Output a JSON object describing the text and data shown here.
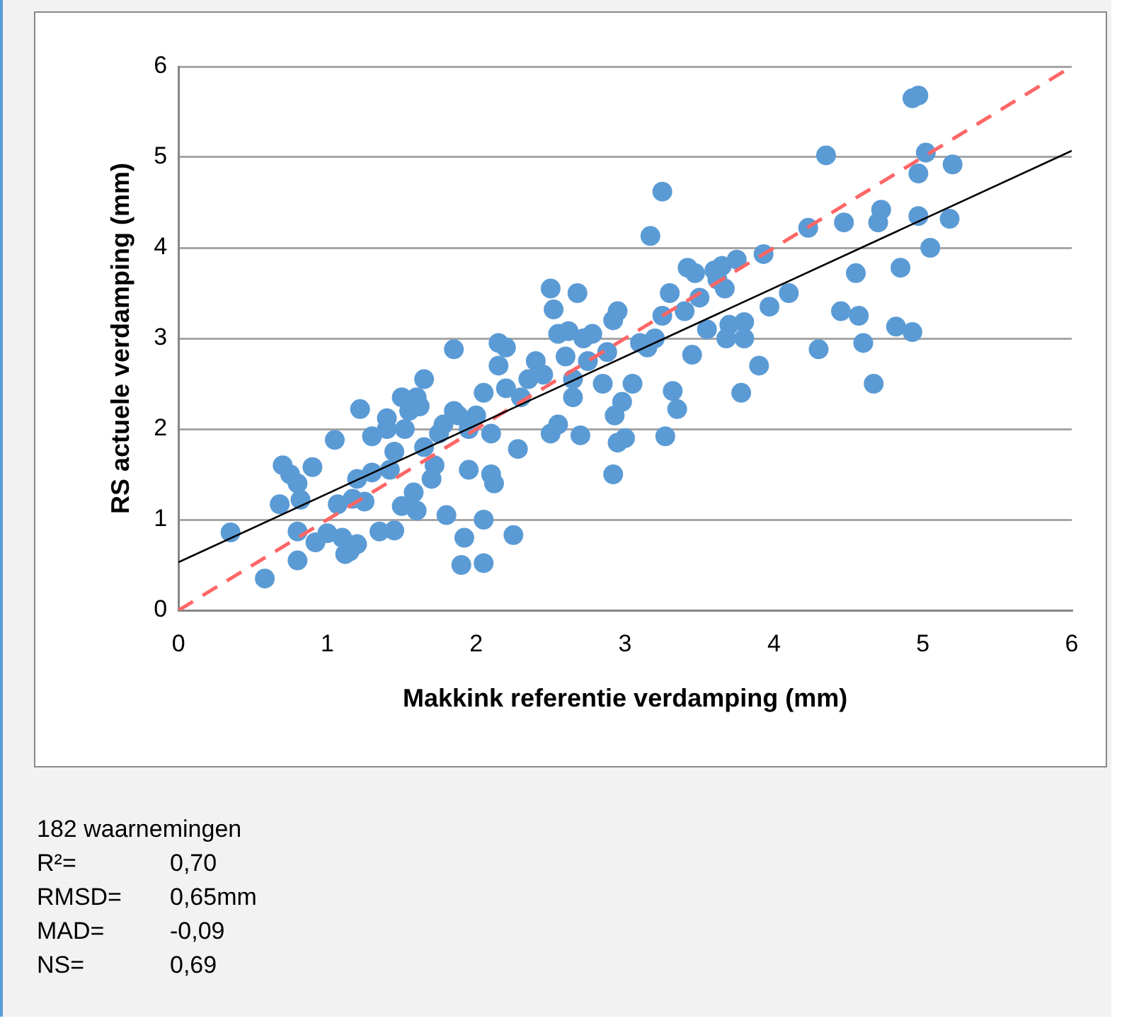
{
  "chart_data": {
    "type": "scatter",
    "xlabel": "Makkink referentie verdamping (mm)",
    "ylabel": "RS actuele verdamping (mm)",
    "xlim": [
      0,
      6
    ],
    "ylim": [
      0,
      6
    ],
    "xticks": [
      0,
      1,
      2,
      3,
      4,
      5,
      6
    ],
    "yticks": [
      0,
      1,
      2,
      3,
      4,
      5,
      6
    ],
    "grid": "y",
    "legend": false,
    "marker": "circle",
    "annotations": [
      "182 waarnemingen",
      "R²= 0,70",
      "RMSD= 0,65mm",
      "MAD= -0,09",
      "NS= 0,69"
    ],
    "series": [
      {
        "color": "#5b9bd5",
        "x": [
          0.35,
          0.58,
          0.68,
          0.7,
          0.75,
          0.8,
          0.8,
          0.8,
          0.82,
          0.9,
          0.92,
          1.0,
          1.05,
          1.07,
          1.1,
          1.12,
          1.15,
          1.17,
          1.2,
          1.2,
          1.22,
          1.25,
          1.3,
          1.3,
          1.35,
          1.4,
          1.4,
          1.42,
          1.45,
          1.45,
          1.5,
          1.5,
          1.52,
          1.55,
          1.58,
          1.6,
          1.6,
          1.62,
          1.65,
          1.65,
          1.7,
          1.72,
          1.75,
          1.78,
          1.8,
          1.85,
          1.85,
          1.88,
          1.9,
          1.92,
          1.95,
          1.95,
          2.0,
          2.05,
          2.05,
          2.05,
          2.1,
          2.1,
          2.12,
          2.15,
          2.15,
          2.2,
          2.2,
          2.25,
          2.28,
          2.3,
          2.35,
          2.4,
          2.45,
          2.5,
          2.5,
          2.52,
          2.55,
          2.55,
          2.6,
          2.62,
          2.65,
          2.65,
          2.68,
          2.7,
          2.72,
          2.75,
          2.78,
          2.85,
          2.88,
          2.92,
          2.92,
          2.93,
          2.95,
          2.95,
          2.98,
          3.0,
          3.05,
          3.1,
          3.15,
          3.17,
          3.2,
          3.25,
          3.25,
          3.27,
          3.3,
          3.32,
          3.35,
          3.4,
          3.42,
          3.45,
          3.47,
          3.5,
          3.55,
          3.6,
          3.62,
          3.65,
          3.67,
          3.68,
          3.7,
          3.75,
          3.78,
          3.8,
          3.8,
          3.9,
          3.93,
          3.97,
          4.1,
          4.23,
          4.3,
          4.35,
          4.45,
          4.47,
          4.55,
          4.57,
          4.6,
          4.67,
          4.7,
          4.72,
          4.82,
          4.85,
          4.93,
          4.93,
          4.97,
          4.97,
          4.97,
          5.02,
          5.05,
          5.18,
          5.2
        ],
        "values": [
          0.86,
          0.35,
          1.17,
          1.6,
          1.5,
          1.4,
          0.87,
          0.55,
          1.22,
          1.58,
          0.75,
          0.85,
          1.88,
          1.17,
          0.8,
          0.62,
          0.65,
          1.23,
          0.73,
          1.45,
          2.22,
          1.2,
          1.52,
          1.92,
          0.87,
          2.0,
          2.12,
          1.55,
          1.75,
          0.88,
          2.35,
          1.15,
          2.0,
          2.2,
          1.3,
          1.1,
          2.35,
          2.25,
          2.55,
          1.8,
          1.45,
          1.6,
          1.95,
          2.05,
          1.05,
          2.88,
          2.2,
          2.15,
          0.5,
          0.8,
          1.55,
          2.0,
          2.15,
          0.52,
          1.0,
          2.4,
          1.5,
          1.95,
          1.4,
          2.95,
          2.7,
          2.45,
          2.9,
          0.83,
          1.78,
          2.35,
          2.55,
          2.75,
          2.6,
          1.95,
          3.55,
          3.32,
          2.05,
          3.05,
          2.8,
          3.08,
          2.35,
          2.55,
          3.5,
          1.93,
          3.0,
          2.75,
          3.05,
          2.5,
          2.85,
          3.2,
          1.5,
          2.15,
          3.3,
          1.85,
          2.3,
          1.9,
          2.5,
          2.95,
          2.9,
          4.13,
          3.0,
          4.62,
          3.25,
          1.92,
          3.5,
          2.42,
          2.22,
          3.3,
          3.78,
          2.82,
          3.72,
          3.45,
          3.1,
          3.75,
          3.65,
          3.8,
          3.55,
          3.0,
          3.15,
          3.87,
          2.4,
          3.0,
          3.18,
          2.7,
          3.93,
          3.35,
          3.5,
          4.22,
          2.88,
          5.02,
          3.3,
          4.28,
          3.72,
          3.25,
          2.95,
          2.5,
          4.28,
          4.42,
          3.13,
          3.78,
          3.07,
          5.65,
          5.68,
          4.35,
          4.82,
          5.05,
          4.0,
          4.32,
          4.92
        ]
      },
      {
        "type": "line",
        "color": "#000000",
        "marker": "none",
        "line_style": "solid",
        "x": [
          0,
          6
        ],
        "values": [
          0.53,
          5.07
        ]
      },
      {
        "type": "line",
        "color": "#ff6666",
        "marker": "none",
        "line_style": "dashed",
        "x": [
          0,
          6
        ],
        "values": [
          0,
          6
        ]
      }
    ]
  }
}
